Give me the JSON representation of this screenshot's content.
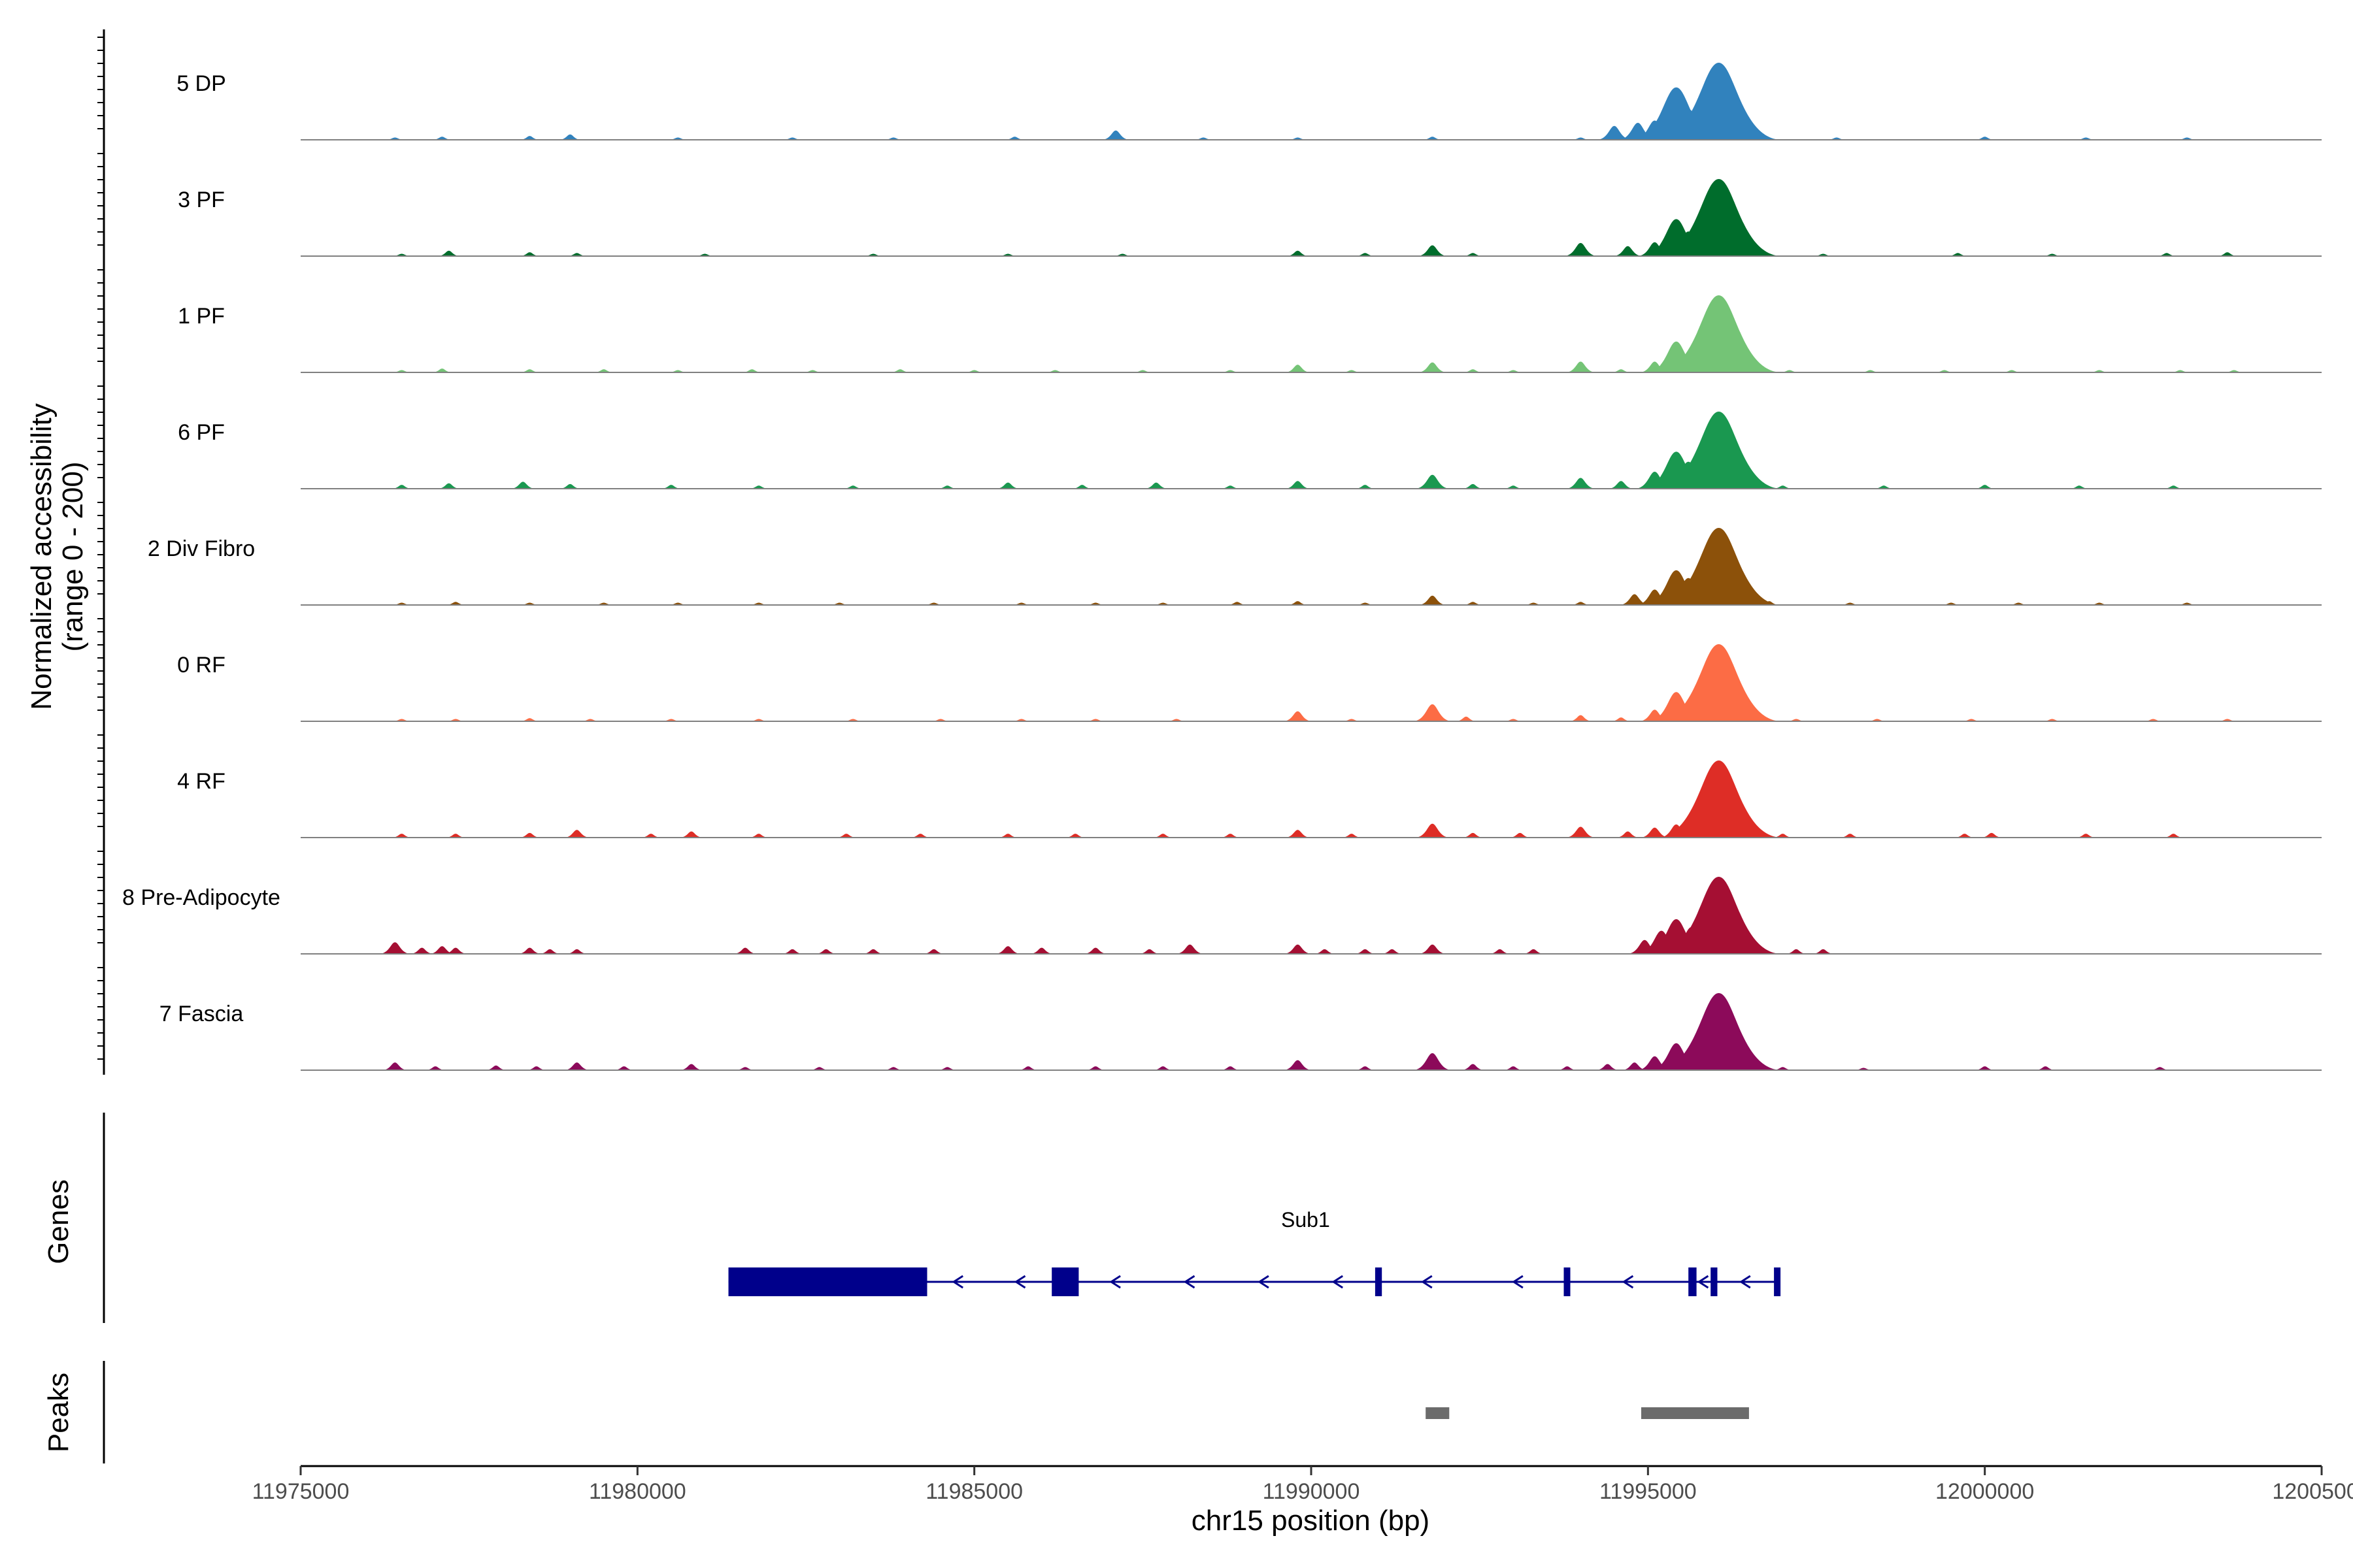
{
  "chart_data": {
    "type": "area",
    "title": "",
    "ylabel": "Normalized accessibility",
    "ylabel_range": "(range 0 - 200)",
    "yrange": [
      0,
      200
    ],
    "xlabel": "chr15 position (bp)",
    "xlim": [
      11975000,
      12005000
    ],
    "xticks": [
      11975000,
      11980000,
      11985000,
      11990000,
      11995000,
      12000000,
      12005000
    ],
    "xtick_labels": [
      "11975000",
      "11980000",
      "11985000",
      "11990000",
      "11995000",
      "12000000",
      "12005000"
    ],
    "tracks": [
      {
        "name": "5 DP",
        "color": "#3182bd",
        "values": [
          [
            11976400,
            3
          ],
          [
            11977100,
            4
          ],
          [
            11978400,
            5
          ],
          [
            11979000,
            7
          ],
          [
            11980600,
            3
          ],
          [
            11982300,
            3
          ],
          [
            11983800,
            3
          ],
          [
            11985600,
            4
          ],
          [
            11987100,
            12
          ],
          [
            11988400,
            3
          ],
          [
            11989800,
            3
          ],
          [
            11991800,
            4
          ],
          [
            11994000,
            3
          ],
          [
            11994500,
            18
          ],
          [
            11994850,
            22
          ],
          [
            11995100,
            25
          ],
          [
            11995420,
            68
          ],
          [
            11995600,
            40
          ],
          [
            11995800,
            18
          ],
          [
            11996050,
            100
          ],
          [
            11996300,
            22
          ],
          [
            11996650,
            8
          ],
          [
            11997800,
            3
          ],
          [
            12000000,
            4
          ],
          [
            12001500,
            3
          ],
          [
            12003000,
            3
          ]
        ]
      },
      {
        "name": "3 PF",
        "color": "#006d2c",
        "values": [
          [
            11976500,
            3
          ],
          [
            11977200,
            7
          ],
          [
            11978400,
            5
          ],
          [
            11979100,
            4
          ],
          [
            11981000,
            3
          ],
          [
            11983500,
            3
          ],
          [
            11985500,
            3
          ],
          [
            11987200,
            3
          ],
          [
            11989800,
            7
          ],
          [
            11990800,
            4
          ],
          [
            11991800,
            14
          ],
          [
            11992400,
            4
          ],
          [
            11994000,
            17
          ],
          [
            11994700,
            13
          ],
          [
            11995100,
            18
          ],
          [
            11995420,
            48
          ],
          [
            11995600,
            32
          ],
          [
            11995800,
            24
          ],
          [
            11996050,
            100
          ],
          [
            11996300,
            32
          ],
          [
            11996700,
            5
          ],
          [
            11997600,
            3
          ],
          [
            11999600,
            4
          ],
          [
            12001000,
            3
          ],
          [
            12002700,
            4
          ],
          [
            12003600,
            5
          ]
        ]
      },
      {
        "name": "1 PF",
        "color": "#74c476",
        "values": [
          [
            11976500,
            3
          ],
          [
            11977100,
            5
          ],
          [
            11978400,
            4
          ],
          [
            11979500,
            4
          ],
          [
            11980600,
            3
          ],
          [
            11981700,
            4
          ],
          [
            11982600,
            3
          ],
          [
            11983900,
            4
          ],
          [
            11985000,
            3
          ],
          [
            11986200,
            3
          ],
          [
            11987500,
            3
          ],
          [
            11988800,
            3
          ],
          [
            11989800,
            10
          ],
          [
            11990600,
            3
          ],
          [
            11991800,
            13
          ],
          [
            11992400,
            4
          ],
          [
            11993000,
            3
          ],
          [
            11994000,
            14
          ],
          [
            11994600,
            4
          ],
          [
            11995100,
            14
          ],
          [
            11995420,
            40
          ],
          [
            11995600,
            15
          ],
          [
            11995800,
            12
          ],
          [
            11996050,
            100
          ],
          [
            11996350,
            12
          ],
          [
            11997100,
            3
          ],
          [
            11998300,
            3
          ],
          [
            11999400,
            3
          ],
          [
            12000400,
            3
          ],
          [
            12001700,
            3
          ],
          [
            12002900,
            3
          ],
          [
            12003700,
            3
          ]
        ]
      },
      {
        "name": "6 PF",
        "color": "#1a9850",
        "values": [
          [
            11976500,
            5
          ],
          [
            11977200,
            7
          ],
          [
            11978300,
            9
          ],
          [
            11979000,
            6
          ],
          [
            11980500,
            5
          ],
          [
            11981800,
            4
          ],
          [
            11983200,
            4
          ],
          [
            11984600,
            4
          ],
          [
            11985500,
            8
          ],
          [
            11986600,
            5
          ],
          [
            11987700,
            8
          ],
          [
            11988800,
            4
          ],
          [
            11989800,
            10
          ],
          [
            11990800,
            5
          ],
          [
            11991800,
            18
          ],
          [
            11992400,
            6
          ],
          [
            11993000,
            4
          ],
          [
            11994000,
            14
          ],
          [
            11994600,
            10
          ],
          [
            11995100,
            22
          ],
          [
            11995420,
            48
          ],
          [
            11995600,
            35
          ],
          [
            11995800,
            22
          ],
          [
            11996050,
            100
          ],
          [
            11996350,
            24
          ],
          [
            11997000,
            4
          ],
          [
            11998500,
            4
          ],
          [
            12000000,
            5
          ],
          [
            12001400,
            4
          ],
          [
            12002800,
            4
          ]
        ]
      },
      {
        "name": "2 Div Fibro",
        "color": "#8c510a",
        "values": [
          [
            11976500,
            3
          ],
          [
            11977300,
            4
          ],
          [
            11978400,
            3
          ],
          [
            11979500,
            3
          ],
          [
            11980600,
            3
          ],
          [
            11981800,
            3
          ],
          [
            11983000,
            3
          ],
          [
            11984400,
            3
          ],
          [
            11985700,
            3
          ],
          [
            11986800,
            3
          ],
          [
            11987800,
            3
          ],
          [
            11988900,
            4
          ],
          [
            11989800,
            5
          ],
          [
            11990800,
            3
          ],
          [
            11991800,
            12
          ],
          [
            11992400,
            4
          ],
          [
            11993300,
            3
          ],
          [
            11994000,
            4
          ],
          [
            11994800,
            14
          ],
          [
            11995100,
            20
          ],
          [
            11995420,
            45
          ],
          [
            11995600,
            35
          ],
          [
            11995800,
            22
          ],
          [
            11996050,
            100
          ],
          [
            11996350,
            22
          ],
          [
            11996800,
            5
          ],
          [
            11998000,
            3
          ],
          [
            11999500,
            3
          ],
          [
            12000500,
            3
          ],
          [
            12001700,
            3
          ],
          [
            12003000,
            3
          ]
        ]
      },
      {
        "name": "0 RF",
        "color": "#fc6c45",
        "values": [
          [
            11976500,
            3
          ],
          [
            11977300,
            3
          ],
          [
            11978400,
            4
          ],
          [
            11979300,
            3
          ],
          [
            11980500,
            3
          ],
          [
            11981800,
            3
          ],
          [
            11983200,
            3
          ],
          [
            11984500,
            3
          ],
          [
            11985700,
            3
          ],
          [
            11986800,
            3
          ],
          [
            11988000,
            3
          ],
          [
            11989800,
            13
          ],
          [
            11990600,
            3
          ],
          [
            11991800,
            22
          ],
          [
            11992300,
            6
          ],
          [
            11993000,
            3
          ],
          [
            11994000,
            8
          ],
          [
            11994600,
            5
          ],
          [
            11995100,
            15
          ],
          [
            11995420,
            38
          ],
          [
            11995600,
            12
          ],
          [
            11995800,
            10
          ],
          [
            11996050,
            100
          ],
          [
            11996400,
            8
          ],
          [
            11997200,
            3
          ],
          [
            11998400,
            3
          ],
          [
            11999800,
            3
          ],
          [
            12001000,
            3
          ],
          [
            12002500,
            3
          ],
          [
            12003600,
            3
          ]
        ]
      },
      {
        "name": "4 RF",
        "color": "#de2d26",
        "values": [
          [
            11976500,
            5
          ],
          [
            11977300,
            5
          ],
          [
            11978400,
            6
          ],
          [
            11979100,
            10
          ],
          [
            11980200,
            5
          ],
          [
            11980800,
            8
          ],
          [
            11981800,
            5
          ],
          [
            11983100,
            5
          ],
          [
            11984200,
            5
          ],
          [
            11985500,
            5
          ],
          [
            11986500,
            5
          ],
          [
            11987800,
            5
          ],
          [
            11988800,
            5
          ],
          [
            11989800,
            10
          ],
          [
            11990600,
            5
          ],
          [
            11991800,
            18
          ],
          [
            11992400,
            6
          ],
          [
            11993100,
            6
          ],
          [
            11994000,
            14
          ],
          [
            11994700,
            8
          ],
          [
            11995100,
            13
          ],
          [
            11995420,
            17
          ],
          [
            11995600,
            12
          ],
          [
            11995800,
            10
          ],
          [
            11996050,
            100
          ],
          [
            11996400,
            10
          ],
          [
            11997000,
            5
          ],
          [
            11998000,
            5
          ],
          [
            11999700,
            5
          ],
          [
            12000100,
            6
          ],
          [
            12001500,
            5
          ],
          [
            12002800,
            5
          ]
        ]
      },
      {
        "name": "8 Pre-Adipocyte",
        "color": "#a50f33",
        "values": [
          [
            11976400,
            15
          ],
          [
            11976800,
            8
          ],
          [
            11977100,
            10
          ],
          [
            11977300,
            8
          ],
          [
            11978400,
            8
          ],
          [
            11978700,
            6
          ],
          [
            11979100,
            6
          ],
          [
            11981600,
            8
          ],
          [
            11982300,
            6
          ],
          [
            11982800,
            6
          ],
          [
            11983500,
            6
          ],
          [
            11984400,
            6
          ],
          [
            11985500,
            10
          ],
          [
            11986000,
            8
          ],
          [
            11986800,
            8
          ],
          [
            11987600,
            6
          ],
          [
            11988200,
            12
          ],
          [
            11989800,
            12
          ],
          [
            11990200,
            6
          ],
          [
            11990800,
            6
          ],
          [
            11991200,
            6
          ],
          [
            11991800,
            12
          ],
          [
            11992800,
            6
          ],
          [
            11993300,
            6
          ],
          [
            11994950,
            18
          ],
          [
            11995200,
            30
          ],
          [
            11995420,
            45
          ],
          [
            11995650,
            35
          ],
          [
            11995800,
            22
          ],
          [
            11996050,
            100
          ],
          [
            11996300,
            12
          ],
          [
            11996700,
            6
          ],
          [
            11997200,
            6
          ],
          [
            11997600,
            6
          ]
        ]
      },
      {
        "name": "7 Fascia",
        "color": "#8c0a5a",
        "values": [
          [
            11976400,
            10
          ],
          [
            11977000,
            5
          ],
          [
            11977900,
            6
          ],
          [
            11978500,
            5
          ],
          [
            11979100,
            10
          ],
          [
            11979800,
            5
          ],
          [
            11980800,
            8
          ],
          [
            11981600,
            4
          ],
          [
            11982700,
            4
          ],
          [
            11983800,
            4
          ],
          [
            11984600,
            4
          ],
          [
            11985800,
            5
          ],
          [
            11986800,
            5
          ],
          [
            11987800,
            5
          ],
          [
            11988800,
            5
          ],
          [
            11989800,
            13
          ],
          [
            11990800,
            5
          ],
          [
            11991800,
            22
          ],
          [
            11992400,
            8
          ],
          [
            11993000,
            5
          ],
          [
            11993800,
            5
          ],
          [
            11994400,
            8
          ],
          [
            11994800,
            10
          ],
          [
            11995100,
            18
          ],
          [
            11995420,
            35
          ],
          [
            11995600,
            25
          ],
          [
            11995800,
            18
          ],
          [
            11996050,
            100
          ],
          [
            11996300,
            18
          ],
          [
            11996600,
            10
          ],
          [
            11997000,
            4
          ],
          [
            11998200,
            3
          ],
          [
            12000000,
            5
          ],
          [
            12000900,
            5
          ],
          [
            12002600,
            4
          ]
        ]
      }
    ],
    "genes_label": "Genes",
    "gene": {
      "name": "Sub1",
      "color": "#00008b",
      "strand": "-",
      "start": 11981350,
      "end": 11996930,
      "exons": [
        [
          11981350,
          11984300
        ],
        [
          11986150,
          11986550
        ],
        [
          11990950,
          11991050
        ],
        [
          11993750,
          11993820
        ],
        [
          11995600,
          11995720
        ],
        [
          11995930,
          11996030
        ],
        [
          11996870,
          11996930
        ]
      ]
    },
    "peaks_label": "Peaks",
    "peaks": [
      [
        11991700,
        11992050
      ],
      [
        11994900,
        11996500
      ]
    ],
    "peak_color": "#6b6b6b",
    "baseline_color": "#808080"
  }
}
